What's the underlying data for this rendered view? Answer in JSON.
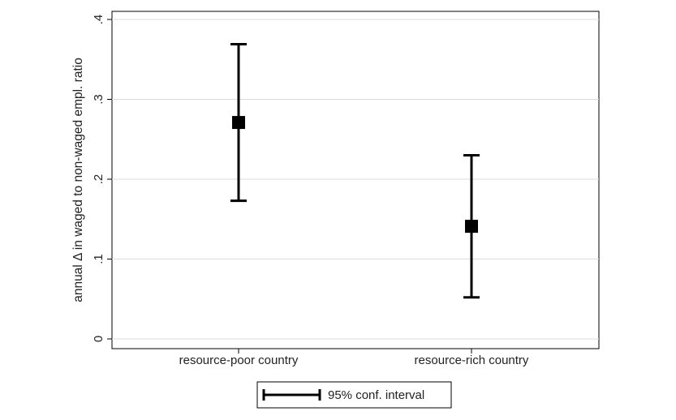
{
  "chart_data": {
    "type": "errorbar",
    "title": "",
    "xlabel": "",
    "ylabel": "annual Δ in waged to non-waged empl. ratio",
    "categories": [
      "resource-poor country",
      "resource-rich country"
    ],
    "series": [
      {
        "values": [
          0.271,
          0.141
        ],
        "ci_lower": [
          0.173,
          0.052
        ],
        "ci_upper": [
          0.369,
          0.23
        ]
      }
    ],
    "ylim": [
      0,
      0.4
    ],
    "yticks": [
      0,
      0.1,
      0.2,
      0.3,
      0.4
    ],
    "ytick_labels": [
      "0",
      ".1",
      ".2",
      ".3",
      ".4"
    ],
    "grid": true,
    "legend": {
      "position": "bottom-center",
      "entries": [
        "95% conf. interval"
      ]
    },
    "colors": {
      "marker": "#000000",
      "gridline": "#dcdcdc",
      "axis": "#000000"
    }
  }
}
